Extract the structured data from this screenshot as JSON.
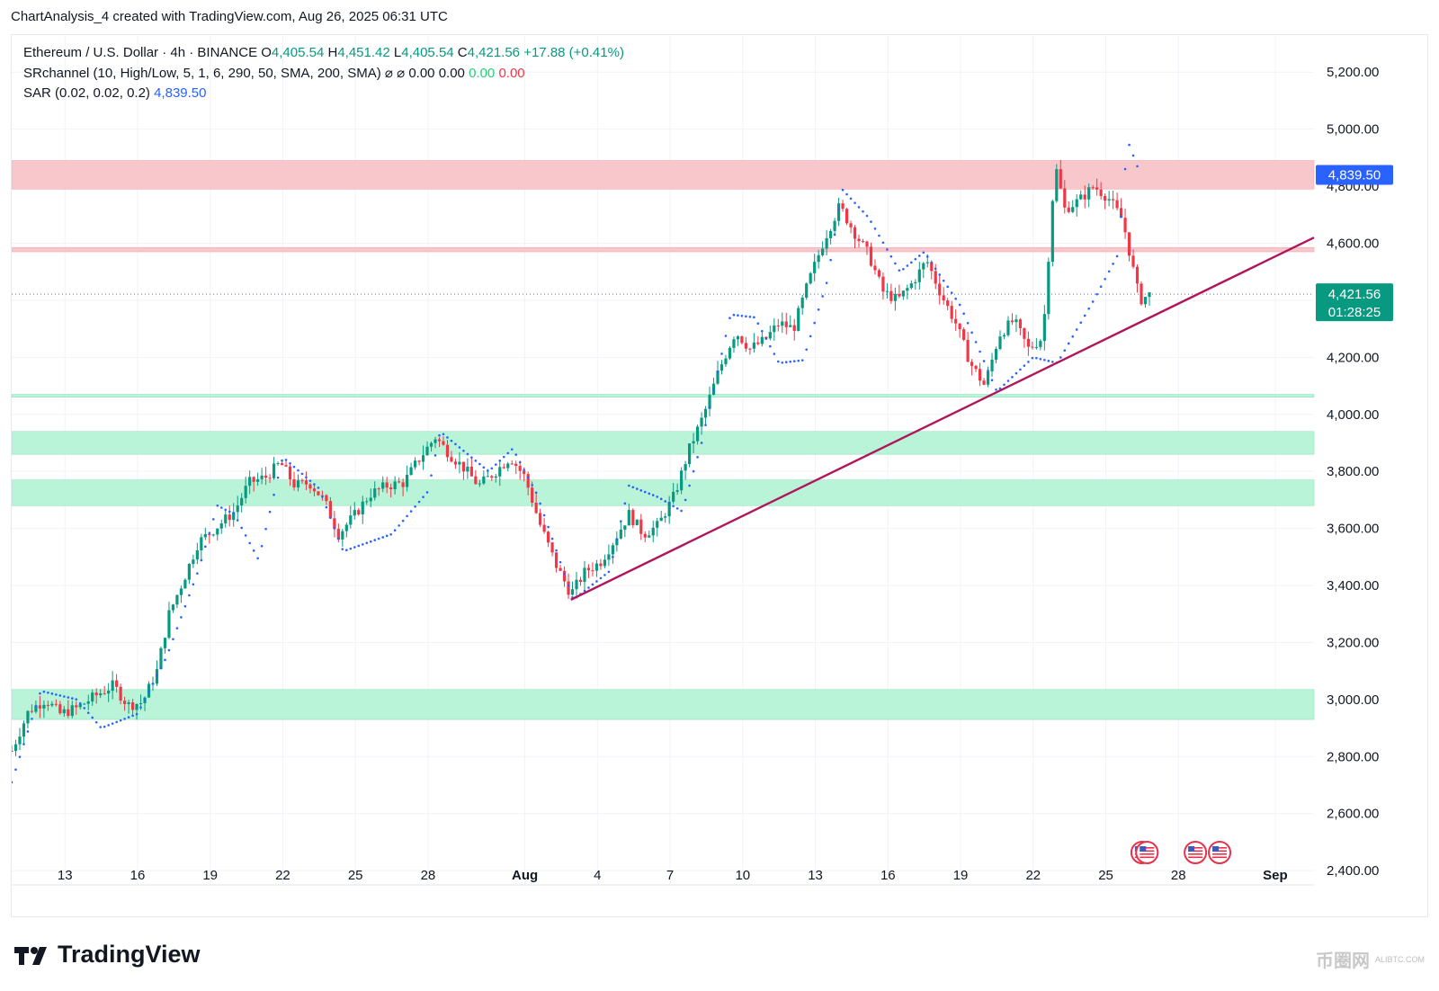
{
  "header": {
    "attribution": "ChartAnalysis_4 created with TradingView.com, Aug 26, 2025 06:31 UTC"
  },
  "legend": {
    "symbol": "Ethereum / U.S. Dollar · 4h · BINANCE",
    "o_label": "O",
    "o_value": "4,405.54",
    "h_label": "H",
    "h_value": "4,451.42",
    "l_label": "L",
    "l_value": "4,405.54",
    "c_label": "C",
    "c_value": "4,421.56",
    "change": "+17.88 (+0.41%)",
    "sr_name": "SRchannel (10, High/Low, 5, 1, 6, 290, 50, SMA, 200, SMA)",
    "sr_sym1": "⌀",
    "sr_sym2": "⌀",
    "sr_v1": "0.00",
    "sr_v2": "0.00",
    "sr_v3": "0.00",
    "sr_v4": "0.00",
    "sar_name": "SAR (0.02, 0.02, 0.2)",
    "sar_value": "4,839.50"
  },
  "price_tags": {
    "sar_tag": "4,839.50",
    "last_price": "4,421.56",
    "countdown": "01:28:25"
  },
  "footer": {
    "brand": "TradingView",
    "watermark": "币圈网",
    "watermark_sub": "ALIBTC.COM"
  },
  "colors": {
    "up": "#089981",
    "down": "#f23645",
    "sar": "#2962ff",
    "trendline": "#b0165a",
    "support_zone": "#b9f3d8",
    "resistance_zone": "#f8c7cc",
    "last_price_bg": "#089981"
  },
  "chart_data": {
    "type": "candlestick",
    "title": "Ethereum / U.S. Dollar · 4h · BINANCE",
    "ylim": [
      2350,
      5330
    ],
    "y_ticks": [
      "2,400.00",
      "2,600.00",
      "2,800.00",
      "3,000.00",
      "3,200.00",
      "3,400.00",
      "3,600.00",
      "3,800.00",
      "4,000.00",
      "4,200.00",
      "4,400.00",
      "4,600.00",
      "4,800.00",
      "5,000.00",
      "5,200.00"
    ],
    "y_tick_values": [
      2400,
      2600,
      2800,
      3000,
      3200,
      3400,
      3600,
      3800,
      4000,
      4200,
      4400,
      4600,
      4800,
      5000,
      5200
    ],
    "x_ticks": [
      "13",
      "16",
      "19",
      "22",
      "25",
      "28",
      "Aug",
      "4",
      "7",
      "10",
      "13",
      "16",
      "19",
      "22",
      "25",
      "28",
      "Sep"
    ],
    "x_tick_days": [
      13,
      16,
      19,
      22,
      25,
      28,
      32,
      35,
      38,
      41,
      44,
      47,
      50,
      53,
      56,
      59,
      63
    ],
    "x_tick_bold": [
      false,
      false,
      false,
      false,
      false,
      false,
      true,
      false,
      false,
      false,
      false,
      false,
      false,
      false,
      false,
      false,
      true
    ],
    "x_axis_note": "days since Jul 0 (Jul 13 = 13, Aug 1 = 32, Sep 1 = 63)",
    "xlim": [
      10.8,
      64.6
    ],
    "zones": [
      {
        "kind": "resistance",
        "low": 4790,
        "high": 4890
      },
      {
        "kind": "resistance-line",
        "low": 4570,
        "high": 4585
      },
      {
        "kind": "support-line",
        "low": 4060,
        "high": 4070
      },
      {
        "kind": "support",
        "low": 3860,
        "high": 3940
      },
      {
        "kind": "support",
        "low": 3680,
        "high": 3770
      },
      {
        "kind": "support",
        "low": 2930,
        "high": 3035
      }
    ],
    "trendline": {
      "start": [
        33.9,
        3350
      ],
      "end": [
        64.6,
        4620
      ]
    },
    "last_price": 4421.56,
    "sar_last": 4839.5,
    "price_path": [
      [
        10.8,
        2820
      ],
      [
        11.5,
        2960
      ],
      [
        12.2,
        3000
      ],
      [
        12.8,
        2950
      ],
      [
        13.5,
        2970
      ],
      [
        14.2,
        3010
      ],
      [
        15.0,
        3050
      ],
      [
        15.6,
        2980
      ],
      [
        16.2,
        2990
      ],
      [
        16.8,
        3100
      ],
      [
        17.3,
        3300
      ],
      [
        17.9,
        3420
      ],
      [
        18.5,
        3550
      ],
      [
        19.2,
        3600
      ],
      [
        20.0,
        3660
      ],
      [
        20.6,
        3760
      ],
      [
        21.3,
        3780
      ],
      [
        21.9,
        3830
      ],
      [
        22.5,
        3750
      ],
      [
        23.1,
        3760
      ],
      [
        23.7,
        3700
      ],
      [
        24.3,
        3580
      ],
      [
        25.0,
        3650
      ],
      [
        25.6,
        3720
      ],
      [
        26.3,
        3750
      ],
      [
        27.0,
        3760
      ],
      [
        27.6,
        3840
      ],
      [
        28.3,
        3920
      ],
      [
        28.9,
        3860
      ],
      [
        29.5,
        3810
      ],
      [
        30.1,
        3750
      ],
      [
        30.8,
        3800
      ],
      [
        31.4,
        3850
      ],
      [
        32.0,
        3780
      ],
      [
        32.6,
        3620
      ],
      [
        33.3,
        3470
      ],
      [
        33.9,
        3370
      ],
      [
        34.5,
        3450
      ],
      [
        35.1,
        3480
      ],
      [
        35.7,
        3560
      ],
      [
        36.3,
        3650
      ],
      [
        36.9,
        3580
      ],
      [
        37.5,
        3610
      ],
      [
        38.2,
        3720
      ],
      [
        38.8,
        3880
      ],
      [
        39.4,
        4000
      ],
      [
        40.0,
        4150
      ],
      [
        40.7,
        4290
      ],
      [
        41.3,
        4230
      ],
      [
        41.9,
        4260
      ],
      [
        42.5,
        4320
      ],
      [
        43.1,
        4300
      ],
      [
        43.7,
        4460
      ],
      [
        44.4,
        4620
      ],
      [
        45.0,
        4730
      ],
      [
        45.6,
        4640
      ],
      [
        46.2,
        4560
      ],
      [
        46.8,
        4430
      ],
      [
        47.4,
        4400
      ],
      [
        48.0,
        4460
      ],
      [
        48.6,
        4540
      ],
      [
        49.2,
        4420
      ],
      [
        49.8,
        4320
      ],
      [
        50.4,
        4180
      ],
      [
        51.0,
        4100
      ],
      [
        51.6,
        4280
      ],
      [
        52.2,
        4330
      ],
      [
        52.8,
        4230
      ],
      [
        53.4,
        4270
      ],
      [
        53.9,
        4880
      ],
      [
        54.3,
        4720
      ],
      [
        54.9,
        4750
      ],
      [
        55.5,
        4800
      ],
      [
        56.1,
        4760
      ],
      [
        56.7,
        4680
      ],
      [
        57.0,
        4560
      ],
      [
        57.4,
        4400
      ],
      [
        57.8,
        4420
      ]
    ],
    "sar_path": [
      [
        10.8,
        2710
      ],
      [
        12.0,
        3030
      ],
      [
        13.5,
        3000
      ],
      [
        14.5,
        2900
      ],
      [
        16.0,
        2950
      ],
      [
        17.2,
        3150
      ],
      [
        18.5,
        3450
      ],
      [
        19.3,
        3680
      ],
      [
        20.0,
        3650
      ],
      [
        21.0,
        3490
      ],
      [
        22.0,
        3850
      ],
      [
        23.5,
        3740
      ],
      [
        24.5,
        3520
      ],
      [
        26.5,
        3580
      ],
      [
        28.0,
        3730
      ],
      [
        28.5,
        3940
      ],
      [
        30.5,
        3800
      ],
      [
        31.5,
        3880
      ],
      [
        32.5,
        3720
      ],
      [
        34.0,
        3350
      ],
      [
        35.5,
        3450
      ],
      [
        36.3,
        3750
      ],
      [
        37.5,
        3710
      ],
      [
        38.5,
        3660
      ],
      [
        39.3,
        3900
      ],
      [
        40.5,
        4350
      ],
      [
        41.5,
        4340
      ],
      [
        42.5,
        4180
      ],
      [
        43.5,
        4190
      ],
      [
        44.5,
        4470
      ],
      [
        45.1,
        4790
      ],
      [
        46.2,
        4690
      ],
      [
        47.5,
        4500
      ],
      [
        48.5,
        4570
      ],
      [
        50.0,
        4380
      ],
      [
        51.5,
        4080
      ],
      [
        53.0,
        4200
      ],
      [
        54.0,
        4180
      ],
      [
        55.5,
        4400
      ],
      [
        56.5,
        4560
      ],
      [
        56.9,
        4960
      ],
      [
        57.3,
        4870
      ]
    ]
  }
}
